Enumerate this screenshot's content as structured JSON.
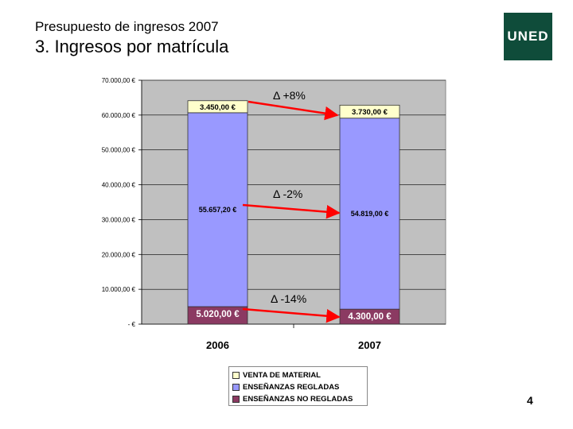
{
  "header": {
    "subtitle": "Presupuesto de ingresos 2007",
    "title": "3. Ingresos por matrícula"
  },
  "logo": {
    "text": "UNED",
    "color": "#0f4c3a"
  },
  "page_number": "4",
  "chart_data": {
    "type": "bar",
    "stacked": true,
    "categories": [
      "2006",
      "2007"
    ],
    "series": [
      {
        "name": "ENSEÑANZAS NO REGLADAS",
        "values": [
          5020,
          4300
        ],
        "labels": [
          "5.020,00 €",
          "4.300,00 €"
        ],
        "color": "#8b3a62"
      },
      {
        "name": "ENSEÑANZAS REGLADAS",
        "values": [
          55657.2,
          54819
        ],
        "labels": [
          "55.657,20 €",
          "54.819,00 €"
        ],
        "color": "#9999ff"
      },
      {
        "name": "VENTA DE MATERIAL",
        "values": [
          3450,
          3730
        ],
        "labels": [
          "3.450,00 €",
          "3.730,00 €"
        ],
        "color": "#ffffcc"
      }
    ],
    "legend_order": [
      "VENTA DE MATERIAL",
      "ENSEÑANZAS REGLADAS",
      "ENSEÑANZAS NO REGLADAS"
    ],
    "ylim": [
      0,
      70000
    ],
    "yticks": [
      "- €",
      "10.000,00 €",
      "20.000,00 €",
      "30.000,00 €",
      "40.000,00 €",
      "50.000,00 €",
      "60.000,00 €",
      "70.000,00 €"
    ],
    "grid": true,
    "legend_position": "bottom",
    "plot_background": "#c0c0c0",
    "annotations": [
      {
        "text": "Δ +8%",
        "series": "VENTA DE MATERIAL"
      },
      {
        "text": "Δ -2%",
        "series": "ENSEÑANZAS REGLADAS"
      },
      {
        "text": "Δ -14%",
        "series": "ENSEÑANZAS NO REGLADAS"
      }
    ],
    "arrow_color": "#ff0000"
  }
}
